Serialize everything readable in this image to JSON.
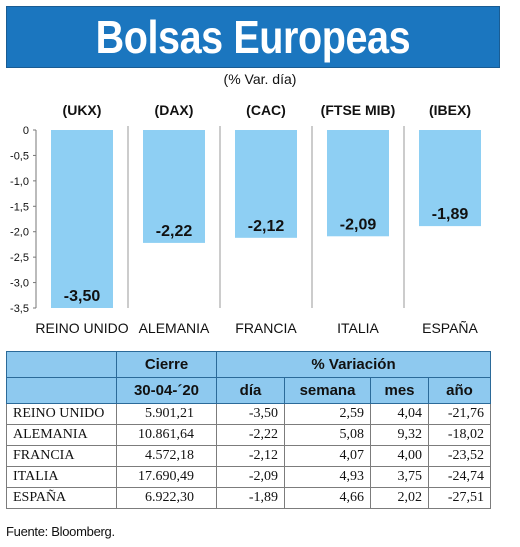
{
  "header": {
    "title": "Bolsas Europeas"
  },
  "subtitle": "(% Var. día)",
  "colors": {
    "header_bg": "#1b76bf",
    "bar": "#8ecff3",
    "table_header": "#8ec9ef",
    "grid": "#9a9a9a"
  },
  "chart_data": {
    "type": "bar",
    "title": "Bolsas Europeas",
    "subtitle": "(% Var. día)",
    "indices": [
      "(UKX)",
      "(DAX)",
      "(CAC)",
      "(FTSE MIB)",
      "(IBEX)"
    ],
    "categories": [
      "REINO UNIDO",
      "ALEMANIA",
      "FRANCIA",
      "ITALIA",
      "ESPAÑA"
    ],
    "values": [
      -3.5,
      -2.22,
      -2.12,
      -2.09,
      -1.89
    ],
    "value_labels": [
      "-3,50",
      "-2,22",
      "-2,12",
      "-2,09",
      "-1,89"
    ],
    "ylim": [
      -3.5,
      0
    ],
    "yticks": [
      0,
      -0.5,
      -1,
      -1.5,
      -2,
      -2.5,
      -3,
      -3.5
    ],
    "ytick_labels": [
      "0",
      "-0,5",
      "-1,0",
      "-1,5",
      "-2,0",
      "-2,5",
      "-3,0",
      "-3,5"
    ],
    "grid": "vertical dividers between bars"
  },
  "table": {
    "group_headers": {
      "blank": "",
      "cierre": "Cierre",
      "variacion": "% Variación"
    },
    "col_headers": {
      "blank": "",
      "date": "30-04-´20",
      "dia": "día",
      "semana": "semana",
      "mes": "mes",
      "ano": "año"
    },
    "rows": [
      {
        "name": "REINO UNIDO",
        "cierre": "5.901,21",
        "dia": "-3,50",
        "semana": "2,59",
        "mes": "4,04",
        "ano": "-21,76"
      },
      {
        "name": "ALEMANIA",
        "cierre": "10.861,64",
        "dia": "-2,22",
        "semana": "5,08",
        "mes": "9,32",
        "ano": "-18,02"
      },
      {
        "name": "FRANCIA",
        "cierre": "4.572,18",
        "dia": "-2,12",
        "semana": "4,07",
        "mes": "4,00",
        "ano": "-23,52"
      },
      {
        "name": "ITALIA",
        "cierre": "17.690,49",
        "dia": "-2,09",
        "semana": "4,93",
        "mes": "3,75",
        "ano": "-24,74"
      },
      {
        "name": "ESPAÑA",
        "cierre": "6.922,30",
        "dia": "-1,89",
        "semana": "4,66",
        "mes": "2,02",
        "ano": "-27,51"
      }
    ]
  },
  "source": "Fuente: Bloomberg."
}
